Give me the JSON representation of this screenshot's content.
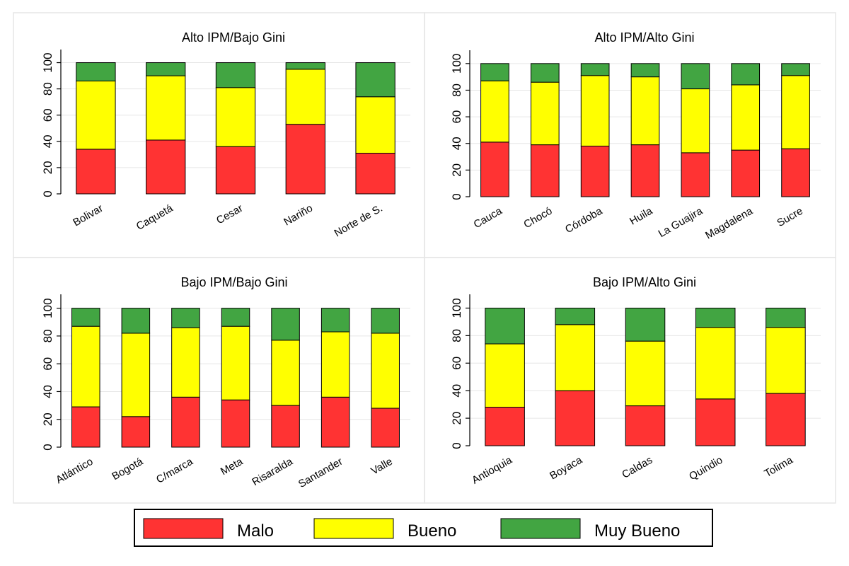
{
  "colors": {
    "malo": "#ff3333",
    "bueno": "#ffff00",
    "muy_bueno": "#42a542",
    "frame": "#e6e6e6",
    "grid": "#e6e6e6"
  },
  "legend": [
    "Malo",
    "Bueno",
    "Muy Bueno"
  ],
  "chart_data": [
    {
      "type": "bar",
      "stacked": true,
      "title": "Alto IPM/Bajo Gini",
      "categories": [
        "Bolivar",
        "Caquetá",
        "Cesar",
        "Nariño",
        "Norte de S."
      ],
      "ylim": [
        0,
        110
      ],
      "yticks": [
        0,
        20,
        40,
        60,
        80,
        100
      ],
      "series": [
        {
          "name": "Malo",
          "values": [
            34,
            41,
            36,
            53,
            31
          ]
        },
        {
          "name": "Bueno",
          "values": [
            52,
            49,
            45,
            42,
            43
          ]
        },
        {
          "name": "Muy Bueno",
          "values": [
            14,
            10,
            19,
            5,
            26
          ]
        }
      ],
      "grid": true,
      "legend": "bottom"
    },
    {
      "type": "bar",
      "stacked": true,
      "title": "Alto IPM/Alto Gini",
      "categories": [
        "Cauca",
        "Chocó",
        "Córdoba",
        "Huila",
        "La Guajira",
        "Magdalena",
        "Sucre"
      ],
      "ylim": [
        0,
        110
      ],
      "yticks": [
        0,
        20,
        40,
        60,
        80,
        100
      ],
      "series": [
        {
          "name": "Malo",
          "values": [
            41,
            39,
            38,
            39,
            33,
            35,
            36
          ]
        },
        {
          "name": "Bueno",
          "values": [
            46,
            47,
            53,
            51,
            48,
            49,
            55
          ]
        },
        {
          "name": "Muy Bueno",
          "values": [
            13,
            14,
            9,
            10,
            19,
            16,
            9
          ]
        }
      ],
      "grid": true,
      "legend": "bottom"
    },
    {
      "type": "bar",
      "stacked": true,
      "title": "Bajo IPM/Bajo Gini",
      "categories": [
        "Atlántico",
        "Bogotá",
        "C/marca",
        "Meta",
        "Risaralda",
        "Santander",
        "Valle"
      ],
      "ylim": [
        0,
        110
      ],
      "yticks": [
        0,
        20,
        40,
        60,
        80,
        100
      ],
      "series": [
        {
          "name": "Malo",
          "values": [
            29,
            22,
            36,
            34,
            30,
            36,
            28
          ]
        },
        {
          "name": "Bueno",
          "values": [
            58,
            60,
            50,
            53,
            47,
            47,
            54
          ]
        },
        {
          "name": "Muy Bueno",
          "values": [
            13,
            18,
            14,
            13,
            23,
            17,
            18
          ]
        }
      ],
      "grid": true,
      "legend": "bottom"
    },
    {
      "type": "bar",
      "stacked": true,
      "title": "Bajo IPM/Alto Gini",
      "categories": [
        "Antioquia",
        "Boyaca",
        "Caldas",
        "Quindio",
        "Tolima"
      ],
      "ylim": [
        0,
        110
      ],
      "yticks": [
        0,
        20,
        40,
        60,
        80,
        100
      ],
      "series": [
        {
          "name": "Malo",
          "values": [
            28,
            40,
            29,
            34,
            38
          ]
        },
        {
          "name": "Bueno",
          "values": [
            46,
            48,
            47,
            52,
            48
          ]
        },
        {
          "name": "Muy Bueno",
          "values": [
            26,
            12,
            24,
            14,
            14
          ]
        }
      ],
      "grid": true,
      "legend": "bottom"
    }
  ]
}
